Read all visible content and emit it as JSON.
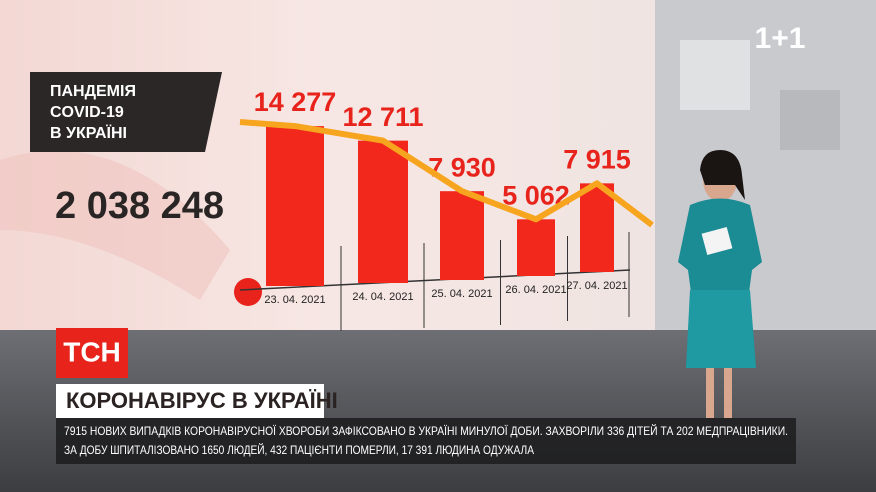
{
  "channel_logo": "1+1",
  "panel": {
    "title_lines": [
      "ПАНДЕМІЯ",
      "COVID-19",
      "В УКРАЇНІ"
    ],
    "total": "2 038 248"
  },
  "chart_data": {
    "type": "bar",
    "categories": [
      "23. 04. 2021",
      "24. 04. 2021",
      "25. 04. 2021",
      "26. 04. 2021",
      "27. 04. 2021"
    ],
    "values": [
      14277,
      12711,
      7930,
      5062,
      7915
    ],
    "value_labels": [
      "14 277",
      "12 711",
      "7 930",
      "5 062",
      "7 915"
    ],
    "color": "#f2281c",
    "line_color": "#f7a51e"
  },
  "lower_third": {
    "logo": "ТСН",
    "headline": "КОРОНАВІРУС В УКРАЇНІ",
    "ticker": [
      "7915 НОВИХ ВИПАДКІВ КОРОНАВІРУСНОЇ ХВОРОБИ ЗАФІКСОВАНО В УКРАЇНІ МИНУЛОЇ ДОБИ. ЗАХВОРІЛИ 336 ДІТЕЙ ТА 202 МЕДПРАЦІВНИКИ.",
      "ЗА ДОБУ ШПИТАЛІЗОВАНО 1650 ЛЮДЕЙ, 432 ПАЦІЄНТИ ПОМЕРЛИ, 17 391 ЛЮДИНА ОДУЖАЛА"
    ]
  }
}
